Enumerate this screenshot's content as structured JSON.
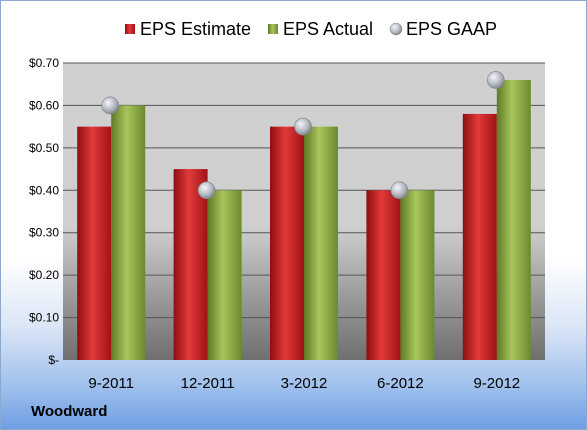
{
  "company": "Woodward",
  "colors": {
    "estimate": "#c8181c",
    "actual": "#89a93f",
    "gaap": "#b8bcc4"
  },
  "chart_data": {
    "type": "bar",
    "categories": [
      "9-2011",
      "12-2011",
      "3-2012",
      "6-2012",
      "9-2012"
    ],
    "series": [
      {
        "name": "EPS Estimate",
        "kind": "bar",
        "values": [
          0.55,
          0.45,
          0.55,
          0.4,
          0.58
        ]
      },
      {
        "name": "EPS Actual",
        "kind": "bar",
        "values": [
          0.6,
          0.4,
          0.55,
          0.4,
          0.66
        ]
      },
      {
        "name": "EPS GAAP",
        "kind": "marker",
        "values": [
          0.6,
          0.4,
          0.55,
          0.4,
          0.66
        ]
      }
    ],
    "ylim": [
      0,
      0.7
    ],
    "yticks": [
      0,
      0.1,
      0.2,
      0.3,
      0.4,
      0.5,
      0.6,
      0.7
    ],
    "ytick_labels": [
      "$-",
      "$0.10",
      "$0.20",
      "$0.30",
      "$0.40",
      "$0.50",
      "$0.60",
      "$0.70"
    ],
    "legend_position": "top",
    "grid": true
  }
}
